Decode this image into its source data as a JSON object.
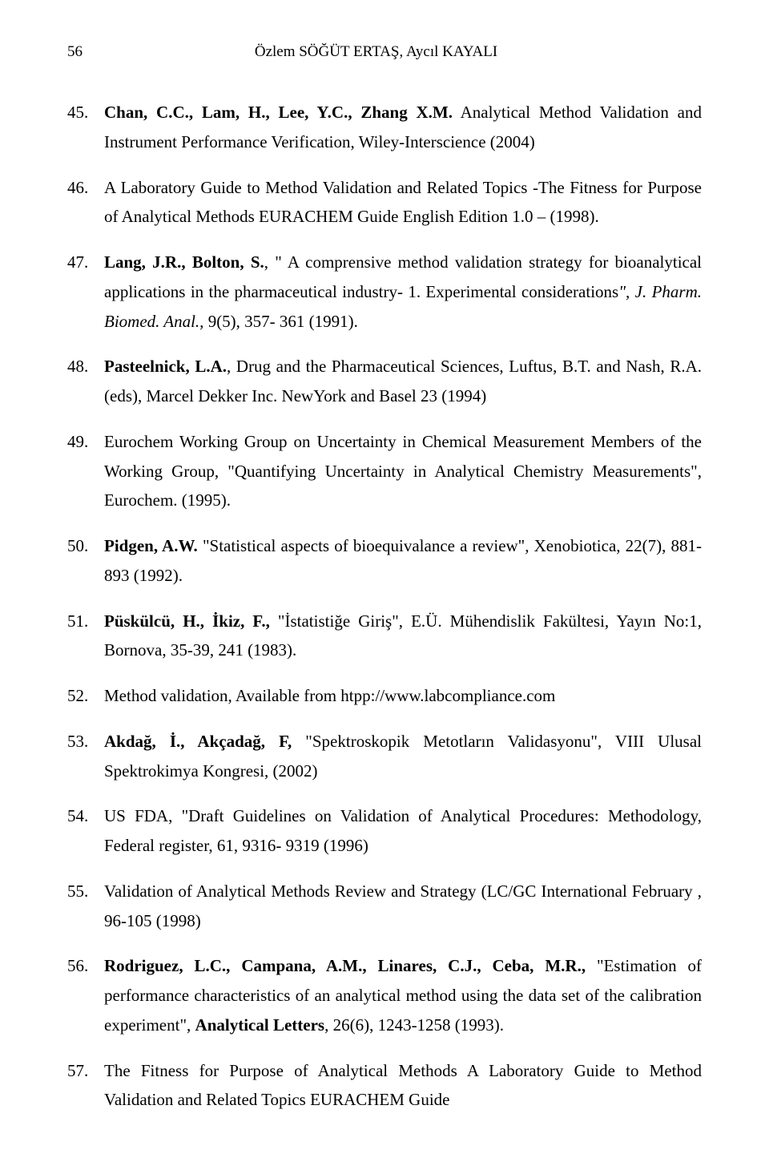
{
  "page_number": "56",
  "header_authors": "Özlem SÖĞÜT ERTAŞ, Aycıl KAYALI",
  "font": {
    "body_size_pt": 16,
    "header_size_pt": 14,
    "line_height": 1.75,
    "color": "#000000",
    "background": "#ffffff"
  },
  "refs": [
    {
      "num": "45.",
      "segments": [
        {
          "t": "Chan, C.C., Lam, H., Lee, Y.C., Zhang X.M.",
          "b": true
        },
        {
          "t": " Analytical Method Validation and Instrument Performance Verification, Wiley-Interscience (2004)"
        }
      ]
    },
    {
      "num": "46.",
      "segments": [
        {
          "t": "A Laboratory Guide to Method Validation and Related Topics -The Fitness for Purpose of Analytical Methods EURACHEM Guide English Edition 1.0 – (1998)."
        }
      ]
    },
    {
      "num": "47.",
      "segments": [
        {
          "t": "Lang, J.R., Bolton, S.",
          "b": true
        },
        {
          "t": ", \" A comprensive method validation strategy for bioanalytical applications in the pharmaceutical industry- 1. Experimental considerations"
        },
        {
          "t": "\", J. Pharm. Biomed. Anal.,",
          "i": true
        },
        {
          "t": " 9(5), 357- 361 (1991)."
        }
      ]
    },
    {
      "num": "48.",
      "segments": [
        {
          "t": "Pasteelnick, L.A.",
          "b": true
        },
        {
          "t": ", Drug and the Pharmaceutical Sciences, Luftus, B.T. and Nash, R.A. (eds), Marcel Dekker Inc. NewYork and Basel 23 (1994)"
        }
      ]
    },
    {
      "num": "49.",
      "segments": [
        {
          "t": "Eurochem Working Group on Uncertainty in Chemical Measurement Members of the Working Group, \"Quantifying Uncertainty in Analytical Chemistry Measurements\", Eurochem. (1995)."
        }
      ]
    },
    {
      "num": "50.",
      "segments": [
        {
          "t": "Pidgen, A.W.",
          "b": true
        },
        {
          "t": " \"Statistical aspects of bioequivalance a review\", Xenobiotica, 22(7), 881-893 (1992)."
        }
      ]
    },
    {
      "num": "51.",
      "segments": [
        {
          "t": "Püskülcü, H., İkiz, F.,",
          "b": true
        },
        {
          "t": " \"İstatistiğe Giriş\", E.Ü. Mühendislik Fakültesi, Yayın No:1, Bornova, 35-39, 241 (1983)."
        }
      ]
    },
    {
      "num": "52.",
      "segments": [
        {
          "t": "Method validation, Available from htpp://www.labcompliance.com"
        }
      ]
    },
    {
      "num": "53.",
      "segments": [
        {
          "t": "Akdağ, İ., Akçadağ, F,",
          "b": true
        },
        {
          "t": " \"Spektroskopik Metotların Validasyonu\", VIII Ulusal Spektrokimya Kongresi, (2002)"
        }
      ]
    },
    {
      "num": "54.",
      "segments": [
        {
          "t": "US FDA, \"Draft Guidelines on Validation of Analytical Procedures: Methodology, Federal register, 61, 9316- 9319 (1996)"
        }
      ]
    },
    {
      "num": "55.",
      "segments": [
        {
          "t": "Validation of Analytical Methods Review and Strategy (LC/GC International  February , 96-105 (1998)"
        }
      ]
    },
    {
      "num": "56.",
      "segments": [
        {
          "t": "Rodriguez, L.C., Campana, A.M., Linares, C.J., Ceba, M.R.,",
          "b": true
        },
        {
          "t": " \"Estimation of performance characteristics of an analytical method using the data set of the calibration experiment\", "
        },
        {
          "t": "Analytical Letters",
          "b": true
        },
        {
          "t": ", 26(6), 1243-1258 (1993)."
        }
      ]
    },
    {
      "num": "57.",
      "segments": [
        {
          "t": "The Fitness for Purpose of Analytical Methods A Laboratory Guide to Method Validation and Related Topics  EURACHEM Guide"
        }
      ]
    }
  ]
}
